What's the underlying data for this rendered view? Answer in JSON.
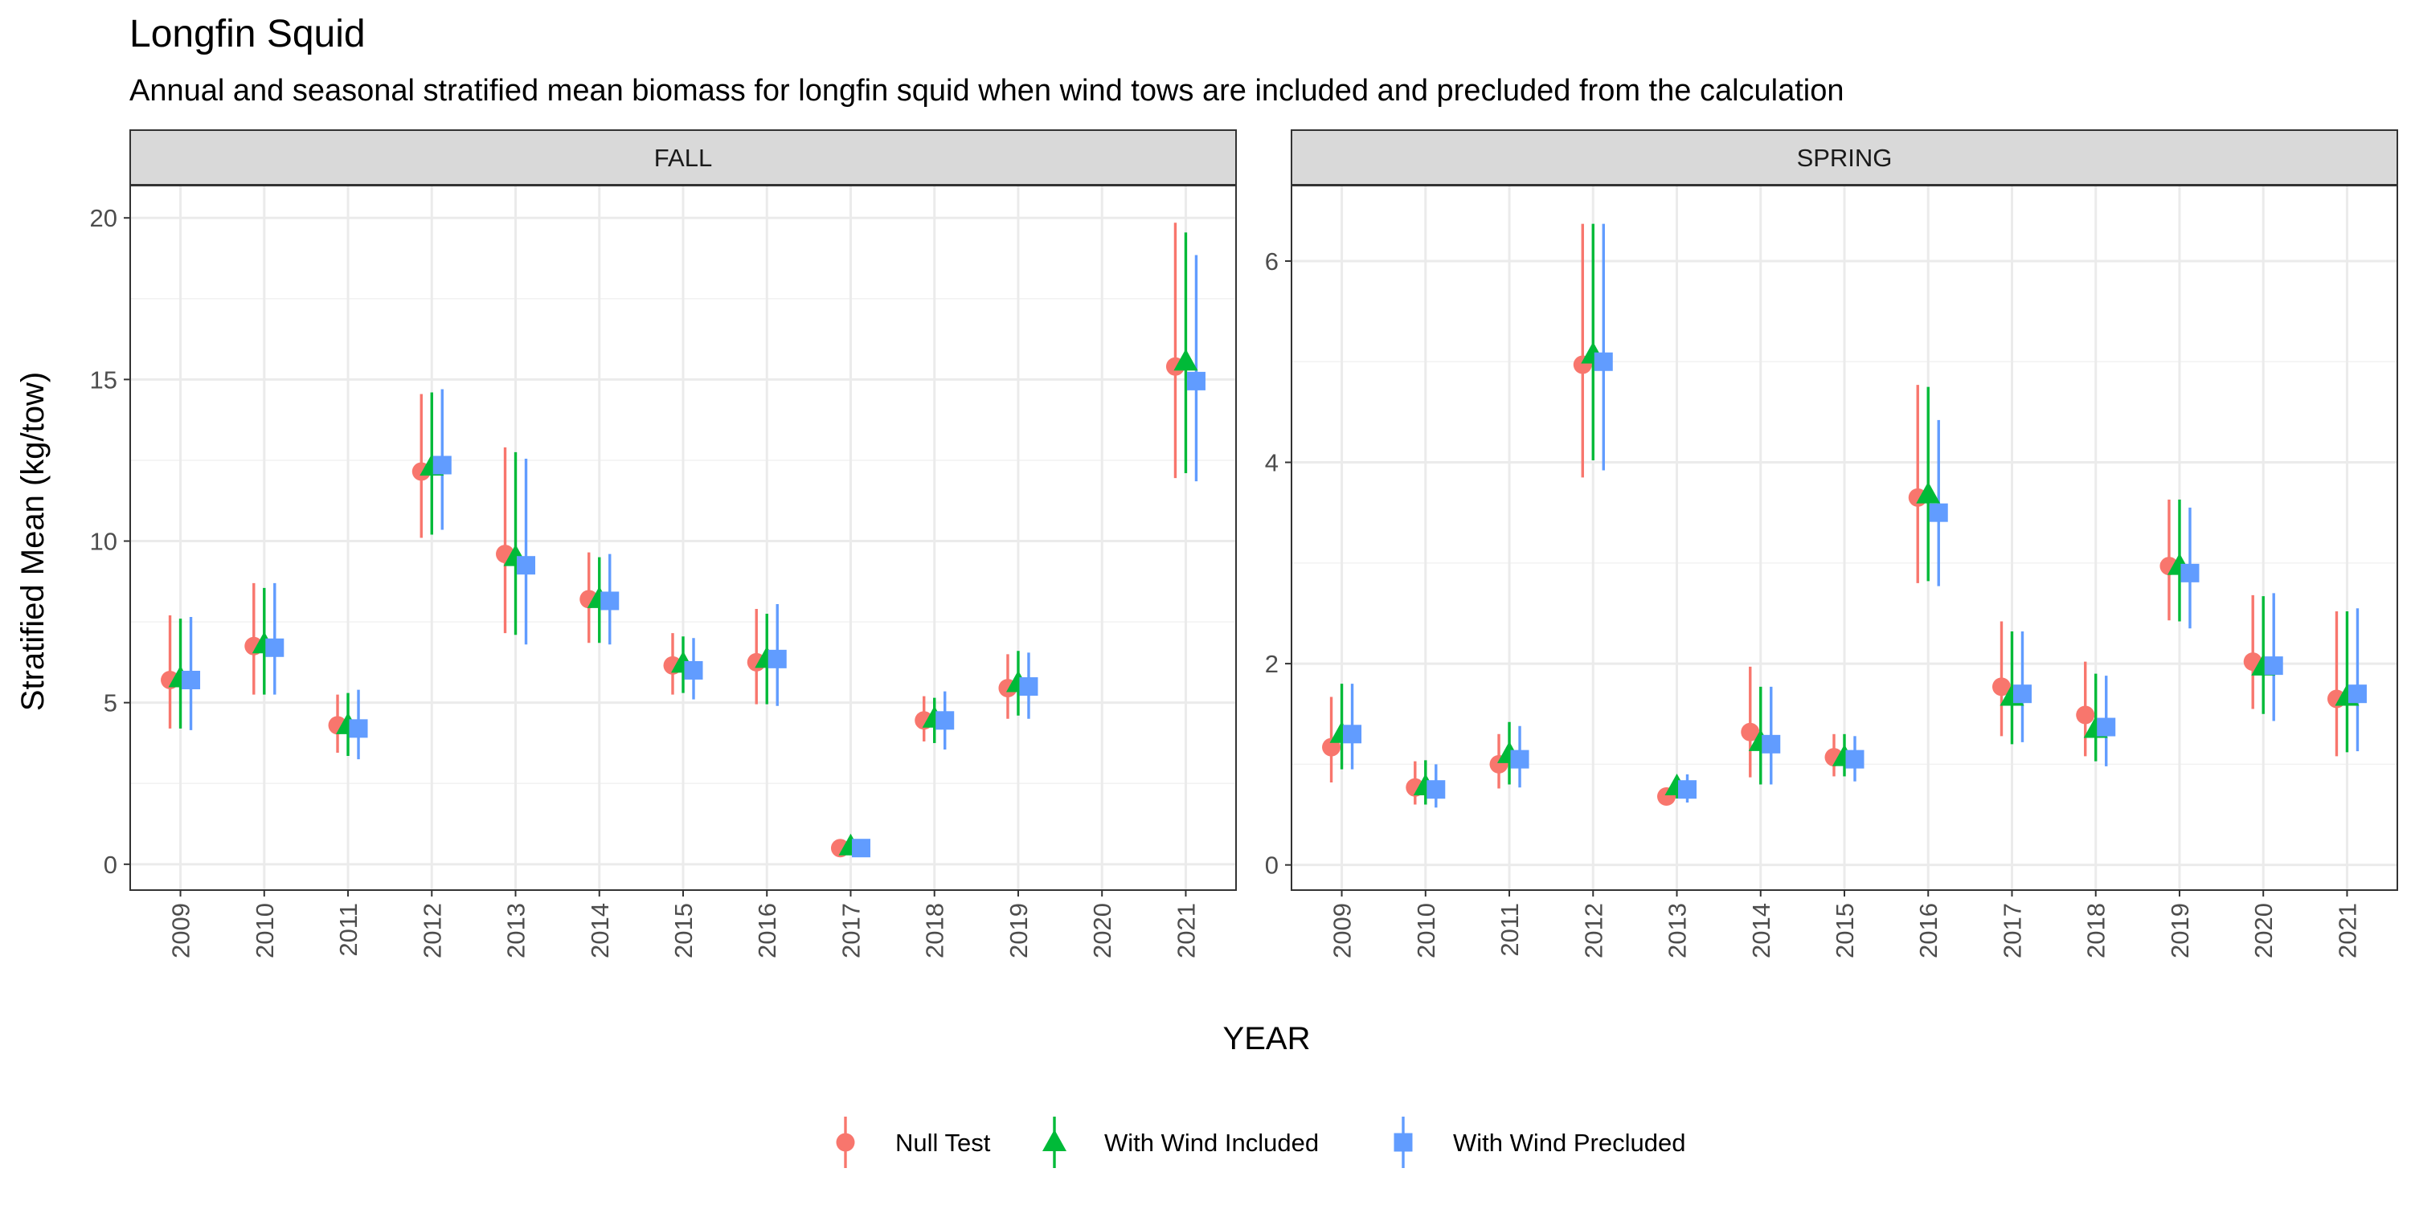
{
  "title": "Longfin Squid",
  "subtitle": "Annual and seasonal stratified mean biomass for longfin squid when wind tows are included and precluded from the calculation",
  "xlabel": "YEAR",
  "ylabel": "Stratified Mean (kg/tow)",
  "colors": {
    "null": "#F8766D",
    "included": "#00BA38",
    "precluded": "#619CFF",
    "grid": "#EBEBEB",
    "strip_bg": "#D9D9D9",
    "panel_border": "#333333"
  },
  "legend": {
    "position": "bottom",
    "items": [
      {
        "key": "null",
        "label": "Null Test",
        "shape": "circle"
      },
      {
        "key": "included",
        "label": "With Wind Included",
        "shape": "triangle"
      },
      {
        "key": "precluded",
        "label": "With Wind Precluded",
        "shape": "square"
      }
    ]
  },
  "chart_data": {
    "type": "scatter",
    "facets": [
      {
        "name": "FALL",
        "categories": [
          "2009",
          "2010",
          "2011",
          "2012",
          "2013",
          "2014",
          "2015",
          "2016",
          "2017",
          "2018",
          "2019",
          "2020",
          "2021"
        ],
        "ylim": [
          -0.8,
          21
        ],
        "yticks": [
          0,
          5,
          10,
          15,
          20
        ],
        "series": [
          {
            "key": "null",
            "name": "Null Test",
            "values": [
              5.7,
              6.75,
              4.3,
              12.15,
              9.6,
              8.2,
              6.15,
              6.25,
              0.5,
              4.45,
              5.45,
              null,
              15.4
            ],
            "low": [
              4.2,
              5.25,
              3.45,
              10.1,
              7.15,
              6.85,
              5.25,
              4.95,
              0.35,
              3.8,
              4.5,
              null,
              11.95
            ],
            "high": [
              7.7,
              8.7,
              5.25,
              14.55,
              12.9,
              9.65,
              7.15,
              7.9,
              0.65,
              5.2,
              6.5,
              null,
              19.85
            ]
          },
          {
            "key": "included",
            "name": "With Wind Included",
            "values": [
              5.75,
              6.8,
              4.3,
              12.3,
              9.5,
              8.2,
              6.2,
              6.35,
              0.55,
              4.5,
              5.6,
              null,
              15.55
            ],
            "low": [
              4.2,
              5.25,
              3.35,
              10.2,
              7.1,
              6.85,
              5.3,
              4.95,
              0.4,
              3.75,
              4.6,
              null,
              12.1
            ],
            "high": [
              7.6,
              8.55,
              5.3,
              14.6,
              12.75,
              9.5,
              7.05,
              7.75,
              0.7,
              5.15,
              6.6,
              null,
              19.55
            ]
          },
          {
            "key": "precluded",
            "name": "With Wind Precluded",
            "values": [
              5.7,
              6.7,
              4.2,
              12.35,
              9.25,
              8.15,
              6.0,
              6.35,
              0.5,
              4.45,
              5.5,
              null,
              14.95
            ],
            "low": [
              4.15,
              5.25,
              3.25,
              10.35,
              6.8,
              6.8,
              5.1,
              4.9,
              0.35,
              3.55,
              4.5,
              null,
              11.85
            ],
            "high": [
              7.65,
              8.7,
              5.4,
              14.7,
              12.55,
              9.6,
              7.0,
              8.05,
              0.65,
              5.35,
              6.55,
              null,
              18.85
            ]
          }
        ]
      },
      {
        "name": "SPRING",
        "categories": [
          "2009",
          "2010",
          "2011",
          "2012",
          "2013",
          "2014",
          "2015",
          "2016",
          "2017",
          "2018",
          "2019",
          "2020",
          "2021"
        ],
        "ylim": [
          -0.25,
          6.75
        ],
        "yticks": [
          0,
          2,
          4,
          6
        ],
        "series": [
          {
            "key": "null",
            "name": "Null Test",
            "values": [
              1.17,
              0.77,
              1.0,
              4.97,
              0.68,
              1.32,
              1.07,
              3.65,
              1.77,
              1.49,
              2.97,
              2.02,
              1.65
            ],
            "low": [
              0.82,
              0.6,
              0.76,
              3.85,
              0.62,
              0.87,
              0.88,
              2.8,
              1.28,
              1.08,
              2.43,
              1.55,
              1.08
            ],
            "high": [
              1.67,
              1.03,
              1.3,
              6.37,
              0.76,
              1.97,
              1.3,
              4.77,
              2.42,
              2.02,
              3.63,
              2.68,
              2.52
            ]
          },
          {
            "key": "included",
            "name": "With Wind Included",
            "values": [
              1.3,
              0.78,
              1.1,
              5.07,
              0.78,
              1.22,
              1.07,
              3.68,
              1.67,
              1.35,
              2.97,
              1.97,
              1.67
            ],
            "low": [
              0.95,
              0.6,
              0.8,
              4.02,
              0.66,
              0.8,
              0.88,
              2.82,
              1.2,
              1.03,
              2.42,
              1.5,
              1.12
            ],
            "high": [
              1.8,
              1.04,
              1.42,
              6.37,
              0.88,
              1.77,
              1.3,
              4.75,
              2.32,
              1.9,
              3.63,
              2.67,
              2.52
            ]
          },
          {
            "key": "precluded",
            "name": "With Wind Precluded",
            "values": [
              1.3,
              0.75,
              1.05,
              5.0,
              0.75,
              1.2,
              1.05,
              3.5,
              1.7,
              1.37,
              2.9,
              1.98,
              1.7
            ],
            "low": [
              0.95,
              0.57,
              0.77,
              3.92,
              0.62,
              0.8,
              0.83,
              2.77,
              1.22,
              0.98,
              2.35,
              1.43,
              1.13
            ],
            "high": [
              1.8,
              1.0,
              1.38,
              6.37,
              0.9,
              1.77,
              1.28,
              4.42,
              2.32,
              1.88,
              3.55,
              2.7,
              2.55
            ]
          }
        ]
      }
    ]
  }
}
